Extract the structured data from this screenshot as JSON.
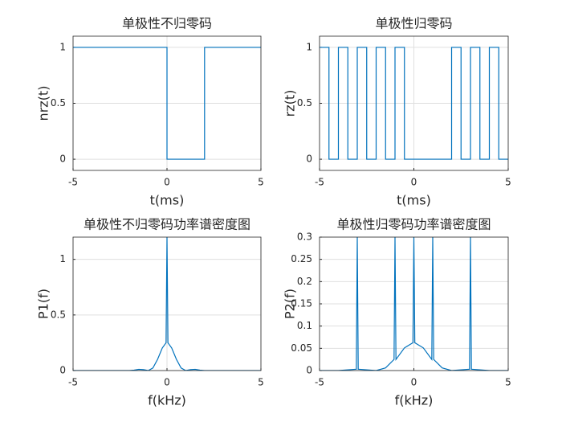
{
  "chart_data": [
    {
      "type": "line",
      "title": "单极性不归零码",
      "xlabel": "t(ms)",
      "ylabel": "nrz(t)",
      "color": "#0072bd",
      "grid": true,
      "xlim": [
        -5,
        5
      ],
      "ylim": [
        -0.1,
        1.1
      ],
      "xticks": [
        -5,
        0,
        5
      ],
      "yticks": [
        0,
        0.5,
        1
      ],
      "x": [
        -5,
        0,
        0,
        2,
        2,
        5
      ],
      "values": [
        1,
        1,
        0,
        0,
        1,
        1
      ]
    },
    {
      "type": "line",
      "title": "单极性归零码",
      "xlabel": "t(ms)",
      "ylabel": "rz(t)",
      "color": "#0072bd",
      "grid": true,
      "xlim": [
        -5,
        5
      ],
      "ylim": [
        -0.1,
        1.1
      ],
      "xticks": [
        -5,
        0,
        5
      ],
      "yticks": [
        0,
        0.5,
        1
      ],
      "x": [
        -5,
        -4.5,
        -4.5,
        -4,
        -4,
        -3.5,
        -3.5,
        -3,
        -3,
        -2.5,
        -2.5,
        -2,
        -2,
        -1.5,
        -1.5,
        -1,
        -1,
        -0.5,
        -0.5,
        2,
        2,
        2.5,
        2.5,
        3,
        3,
        3.5,
        3.5,
        4,
        4,
        4.5,
        4.5,
        5
      ],
      "values": [
        1,
        1,
        0,
        0,
        1,
        1,
        0,
        0,
        1,
        1,
        0,
        0,
        1,
        1,
        0,
        0,
        1,
        1,
        0,
        0,
        1,
        1,
        0,
        0,
        1,
        1,
        0,
        0,
        1,
        1,
        0,
        0
      ]
    },
    {
      "type": "line",
      "title": "单极性不归零码功率谱密度图",
      "xlabel": "f(kHz)",
      "ylabel": "P1(f)",
      "color": "#0072bd",
      "grid": true,
      "xlim": [
        -5,
        5
      ],
      "ylim": [
        0,
        1.2
      ],
      "xticks": [
        -5,
        0,
        5
      ],
      "yticks": [
        0,
        0.5,
        1
      ],
      "x": [
        -5,
        -4,
        -3,
        -2,
        -1.75,
        -1.5,
        -1.25,
        -1,
        -0.75,
        -0.5,
        -0.25,
        -0.05,
        0,
        0.05,
        0.25,
        0.5,
        0.75,
        1,
        1.25,
        1.5,
        1.75,
        2,
        3,
        4,
        5
      ],
      "values": [
        0,
        0,
        0,
        0,
        0.004,
        0.011,
        0.008,
        0,
        0.023,
        0.101,
        0.203,
        0.25,
        1.2,
        0.25,
        0.203,
        0.101,
        0.023,
        0,
        0.008,
        0.011,
        0.004,
        0,
        0,
        0,
        0
      ]
    },
    {
      "type": "line",
      "title": "单极性归零码功率谱密度图",
      "xlabel": "f(kHz)",
      "ylabel": "P2(f)",
      "color": "#0072bd",
      "grid": true,
      "xlim": [
        -5,
        5
      ],
      "ylim": [
        0,
        0.3
      ],
      "xticks": [
        -5,
        0,
        5
      ],
      "yticks": [
        0,
        0.05,
        0.1,
        0.15,
        0.2,
        0.25,
        0.3
      ],
      "x": [
        -5,
        -4,
        -3.05,
        -3,
        -2.95,
        -2,
        -1.5,
        -1.05,
        -1,
        -0.95,
        -0.5,
        -0.05,
        0,
        0.05,
        0.5,
        0.95,
        1,
        1.05,
        1.5,
        2,
        2.95,
        3,
        3.05,
        4,
        5
      ],
      "values": [
        0,
        0,
        0.003,
        0.3,
        0.003,
        0,
        0.006,
        0.025,
        0.3,
        0.025,
        0.051,
        0.0625,
        0.3,
        0.0625,
        0.051,
        0.025,
        0.3,
        0.025,
        0.006,
        0,
        0.003,
        0.3,
        0.003,
        0,
        0
      ]
    }
  ]
}
